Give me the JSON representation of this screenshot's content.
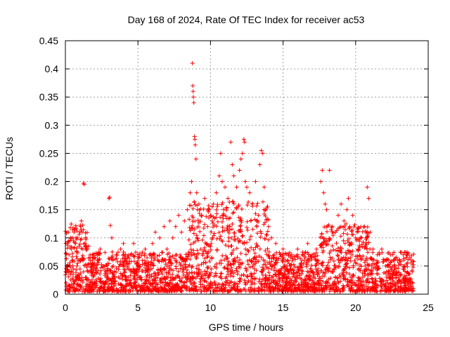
{
  "chart_data": {
    "type": "scatter",
    "title": "Day 168 of 2024, Rate Of TEC Index for receiver ac53",
    "xlabel": "GPS time / hours",
    "ylabel": "ROTI / TECUs",
    "xlim": [
      0,
      25
    ],
    "ylim": [
      0,
      0.45
    ],
    "xticks": [
      0,
      5,
      10,
      15,
      20,
      25
    ],
    "xtick_labels": [
      "0",
      "5",
      "10",
      "15",
      "20",
      "25"
    ],
    "yticks": [
      0,
      0.05,
      0.1,
      0.15,
      0.2,
      0.25,
      0.3,
      0.35,
      0.4,
      0.45
    ],
    "ytick_labels": [
      "0",
      "0.05",
      "0.1",
      "0.15",
      "0.2",
      "0.25",
      "0.3",
      "0.35",
      "0.4",
      "0.45"
    ],
    "grid": true,
    "marker": "plus",
    "color": "#ff0000",
    "series": [
      {
        "points": [
          [
            0.05,
            0.02
          ],
          [
            0.1,
            0.05
          ],
          [
            0.15,
            0.09
          ],
          [
            0.2,
            0.11
          ],
          [
            0.25,
            0.07
          ],
          [
            0.3,
            0.04
          ],
          [
            0.35,
            0.1
          ],
          [
            0.4,
            0.08
          ],
          [
            0.45,
            0.06
          ],
          [
            0.5,
            0.1
          ],
          [
            0.6,
            0.11
          ],
          [
            0.7,
            0.09
          ],
          [
            0.8,
            0.05
          ],
          [
            0.9,
            0.03
          ],
          [
            1.0,
            0.06
          ],
          [
            1.05,
            0.12
          ],
          [
            1.1,
            0.13
          ],
          [
            1.15,
            0.11
          ],
          [
            1.2,
            0.08
          ],
          [
            1.25,
            0.197
          ],
          [
            1.3,
            0.195
          ],
          [
            1.4,
            0.1
          ],
          [
            1.5,
            0.08
          ],
          [
            1.6,
            0.085
          ],
          [
            1.7,
            0.06
          ],
          [
            1.8,
            0.04
          ],
          [
            2.0,
            0.05
          ],
          [
            2.2,
            0.06
          ],
          [
            2.4,
            0.08
          ],
          [
            2.6,
            0.05
          ],
          [
            2.8,
            0.04
          ],
          [
            3.0,
            0.17
          ],
          [
            3.05,
            0.172
          ],
          [
            3.1,
            0.122
          ],
          [
            3.2,
            0.1
          ],
          [
            3.3,
            0.05
          ],
          [
            3.5,
            0.07
          ],
          [
            3.8,
            0.08
          ],
          [
            4.0,
            0.09
          ],
          [
            4.2,
            0.06
          ],
          [
            4.5,
            0.07
          ],
          [
            4.7,
            0.09
          ],
          [
            5.0,
            0.05
          ],
          [
            5.3,
            0.06
          ],
          [
            5.5,
            0.08
          ],
          [
            5.8,
            0.07
          ],
          [
            6.0,
            0.09
          ],
          [
            6.2,
            0.11
          ],
          [
            6.5,
            0.1
          ],
          [
            6.8,
            0.12
          ],
          [
            7.0,
            0.08
          ],
          [
            7.2,
            0.13
          ],
          [
            7.4,
            0.1
          ],
          [
            7.6,
            0.12
          ],
          [
            7.8,
            0.14
          ],
          [
            8.0,
            0.11
          ],
          [
            8.2,
            0.13
          ],
          [
            8.4,
            0.15
          ],
          [
            8.6,
            0.18
          ],
          [
            8.7,
            0.2
          ],
          [
            8.75,
            0.41
          ],
          [
            8.78,
            0.37
          ],
          [
            8.8,
            0.36
          ],
          [
            8.82,
            0.35
          ],
          [
            8.85,
            0.34
          ],
          [
            8.9,
            0.28
          ],
          [
            8.92,
            0.275
          ],
          [
            8.95,
            0.265
          ],
          [
            9.0,
            0.24
          ],
          [
            9.05,
            0.18
          ],
          [
            9.1,
            0.15
          ],
          [
            9.2,
            0.16
          ],
          [
            9.4,
            0.14
          ],
          [
            9.6,
            0.17
          ],
          [
            9.8,
            0.12
          ],
          [
            10.0,
            0.14
          ],
          [
            10.2,
            0.16
          ],
          [
            10.4,
            0.18
          ],
          [
            10.6,
            0.21
          ],
          [
            10.7,
            0.25
          ],
          [
            10.8,
            0.2
          ],
          [
            11.0,
            0.19
          ],
          [
            11.2,
            0.17
          ],
          [
            11.4,
            0.27
          ],
          [
            11.5,
            0.23
          ],
          [
            11.6,
            0.21
          ],
          [
            11.8,
            0.19
          ],
          [
            12.0,
            0.22
          ],
          [
            12.1,
            0.24
          ],
          [
            12.2,
            0.25
          ],
          [
            12.3,
            0.275
          ],
          [
            12.35,
            0.27
          ],
          [
            12.4,
            0.2
          ],
          [
            12.5,
            0.19
          ],
          [
            12.7,
            0.18
          ],
          [
            12.9,
            0.16
          ],
          [
            13.1,
            0.2
          ],
          [
            13.3,
            0.14
          ],
          [
            13.4,
            0.23
          ],
          [
            13.5,
            0.255
          ],
          [
            13.6,
            0.25
          ],
          [
            13.7,
            0.19
          ],
          [
            13.8,
            0.15
          ],
          [
            14.0,
            0.12
          ],
          [
            14.2,
            0.1
          ],
          [
            14.5,
            0.09
          ],
          [
            14.8,
            0.07
          ],
          [
            15.0,
            0.08
          ],
          [
            15.3,
            0.06
          ],
          [
            15.6,
            0.07
          ],
          [
            16.0,
            0.08
          ],
          [
            16.3,
            0.06
          ],
          [
            16.7,
            0.09
          ],
          [
            17.0,
            0.07
          ],
          [
            17.3,
            0.08
          ],
          [
            17.6,
            0.2
          ],
          [
            17.7,
            0.22
          ],
          [
            17.8,
            0.18
          ],
          [
            17.9,
            0.16
          ],
          [
            18.0,
            0.15
          ],
          [
            18.2,
            0.22
          ],
          [
            18.4,
            0.12
          ],
          [
            18.6,
            0.11
          ],
          [
            18.8,
            0.14
          ],
          [
            19.0,
            0.16
          ],
          [
            19.2,
            0.13
          ],
          [
            19.4,
            0.15
          ],
          [
            19.5,
            0.17
          ],
          [
            19.6,
            0.12
          ],
          [
            19.8,
            0.14
          ],
          [
            20.0,
            0.1
          ],
          [
            20.2,
            0.08
          ],
          [
            20.4,
            0.1
          ],
          [
            20.6,
            0.12
          ],
          [
            20.8,
            0.19
          ],
          [
            20.9,
            0.17
          ],
          [
            21.0,
            0.11
          ],
          [
            21.2,
            0.08
          ],
          [
            21.5,
            0.07
          ],
          [
            21.8,
            0.08
          ],
          [
            22.1,
            0.06
          ],
          [
            22.4,
            0.07
          ],
          [
            22.7,
            0.05
          ],
          [
            23.0,
            0.06
          ],
          [
            23.3,
            0.05
          ],
          [
            23.6,
            0.07
          ],
          [
            23.9,
            0.04
          ]
        ]
      }
    ],
    "background_density": {
      "x_range": [
        0,
        24
      ],
      "base_level": 0.035,
      "enhanced_intervals": [
        [
          0,
          1.5,
          0.06
        ],
        [
          8.5,
          14,
          0.08
        ],
        [
          17.5,
          21,
          0.06
        ]
      ]
    }
  }
}
